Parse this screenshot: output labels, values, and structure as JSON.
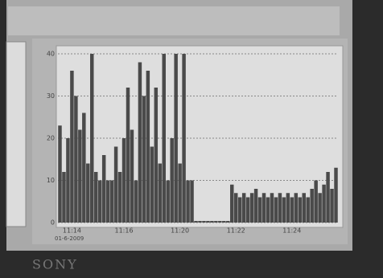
{
  "brand": "SONY",
  "chart_data": {
    "type": "bar",
    "categories": [
      null,
      null,
      null,
      "11:14",
      null,
      null,
      null,
      null,
      null,
      null,
      null,
      null,
      null,
      null,
      null,
      null,
      "11:16",
      null,
      null,
      null,
      null,
      null,
      null,
      null,
      null,
      null,
      null,
      null,
      null,
      null,
      "11:20",
      null,
      null,
      null,
      null,
      null,
      null,
      null,
      null,
      null,
      null,
      null,
      null,
      null,
      "11:22",
      null,
      null,
      null,
      null,
      null,
      null,
      null,
      null,
      null,
      null,
      null,
      null,
      null,
      "11:24",
      null,
      null,
      null,
      null,
      null,
      null,
      null,
      null,
      null,
      null,
      null
    ],
    "x_sublabel": "01-6-2009",
    "values": [
      23,
      12,
      20,
      36,
      30,
      22,
      26,
      14,
      40,
      12,
      10,
      16,
      10,
      10,
      18,
      12,
      20,
      32,
      22,
      10,
      38,
      30,
      36,
      18,
      32,
      14,
      40,
      10,
      20,
      40,
      14,
      40,
      10,
      10,
      0,
      0,
      0,
      0,
      0,
      0,
      0,
      0,
      0,
      9,
      7,
      6,
      7,
      6,
      7,
      8,
      6,
      7,
      6,
      7,
      6,
      7,
      6,
      7,
      6,
      7,
      6,
      7,
      6,
      8,
      10,
      7,
      9,
      12,
      8,
      13
    ],
    "color": "#4a4a4a",
    "ylim": [
      0,
      40
    ],
    "yticks": [
      0,
      10,
      20,
      30,
      40
    ],
    "grid": true
  }
}
